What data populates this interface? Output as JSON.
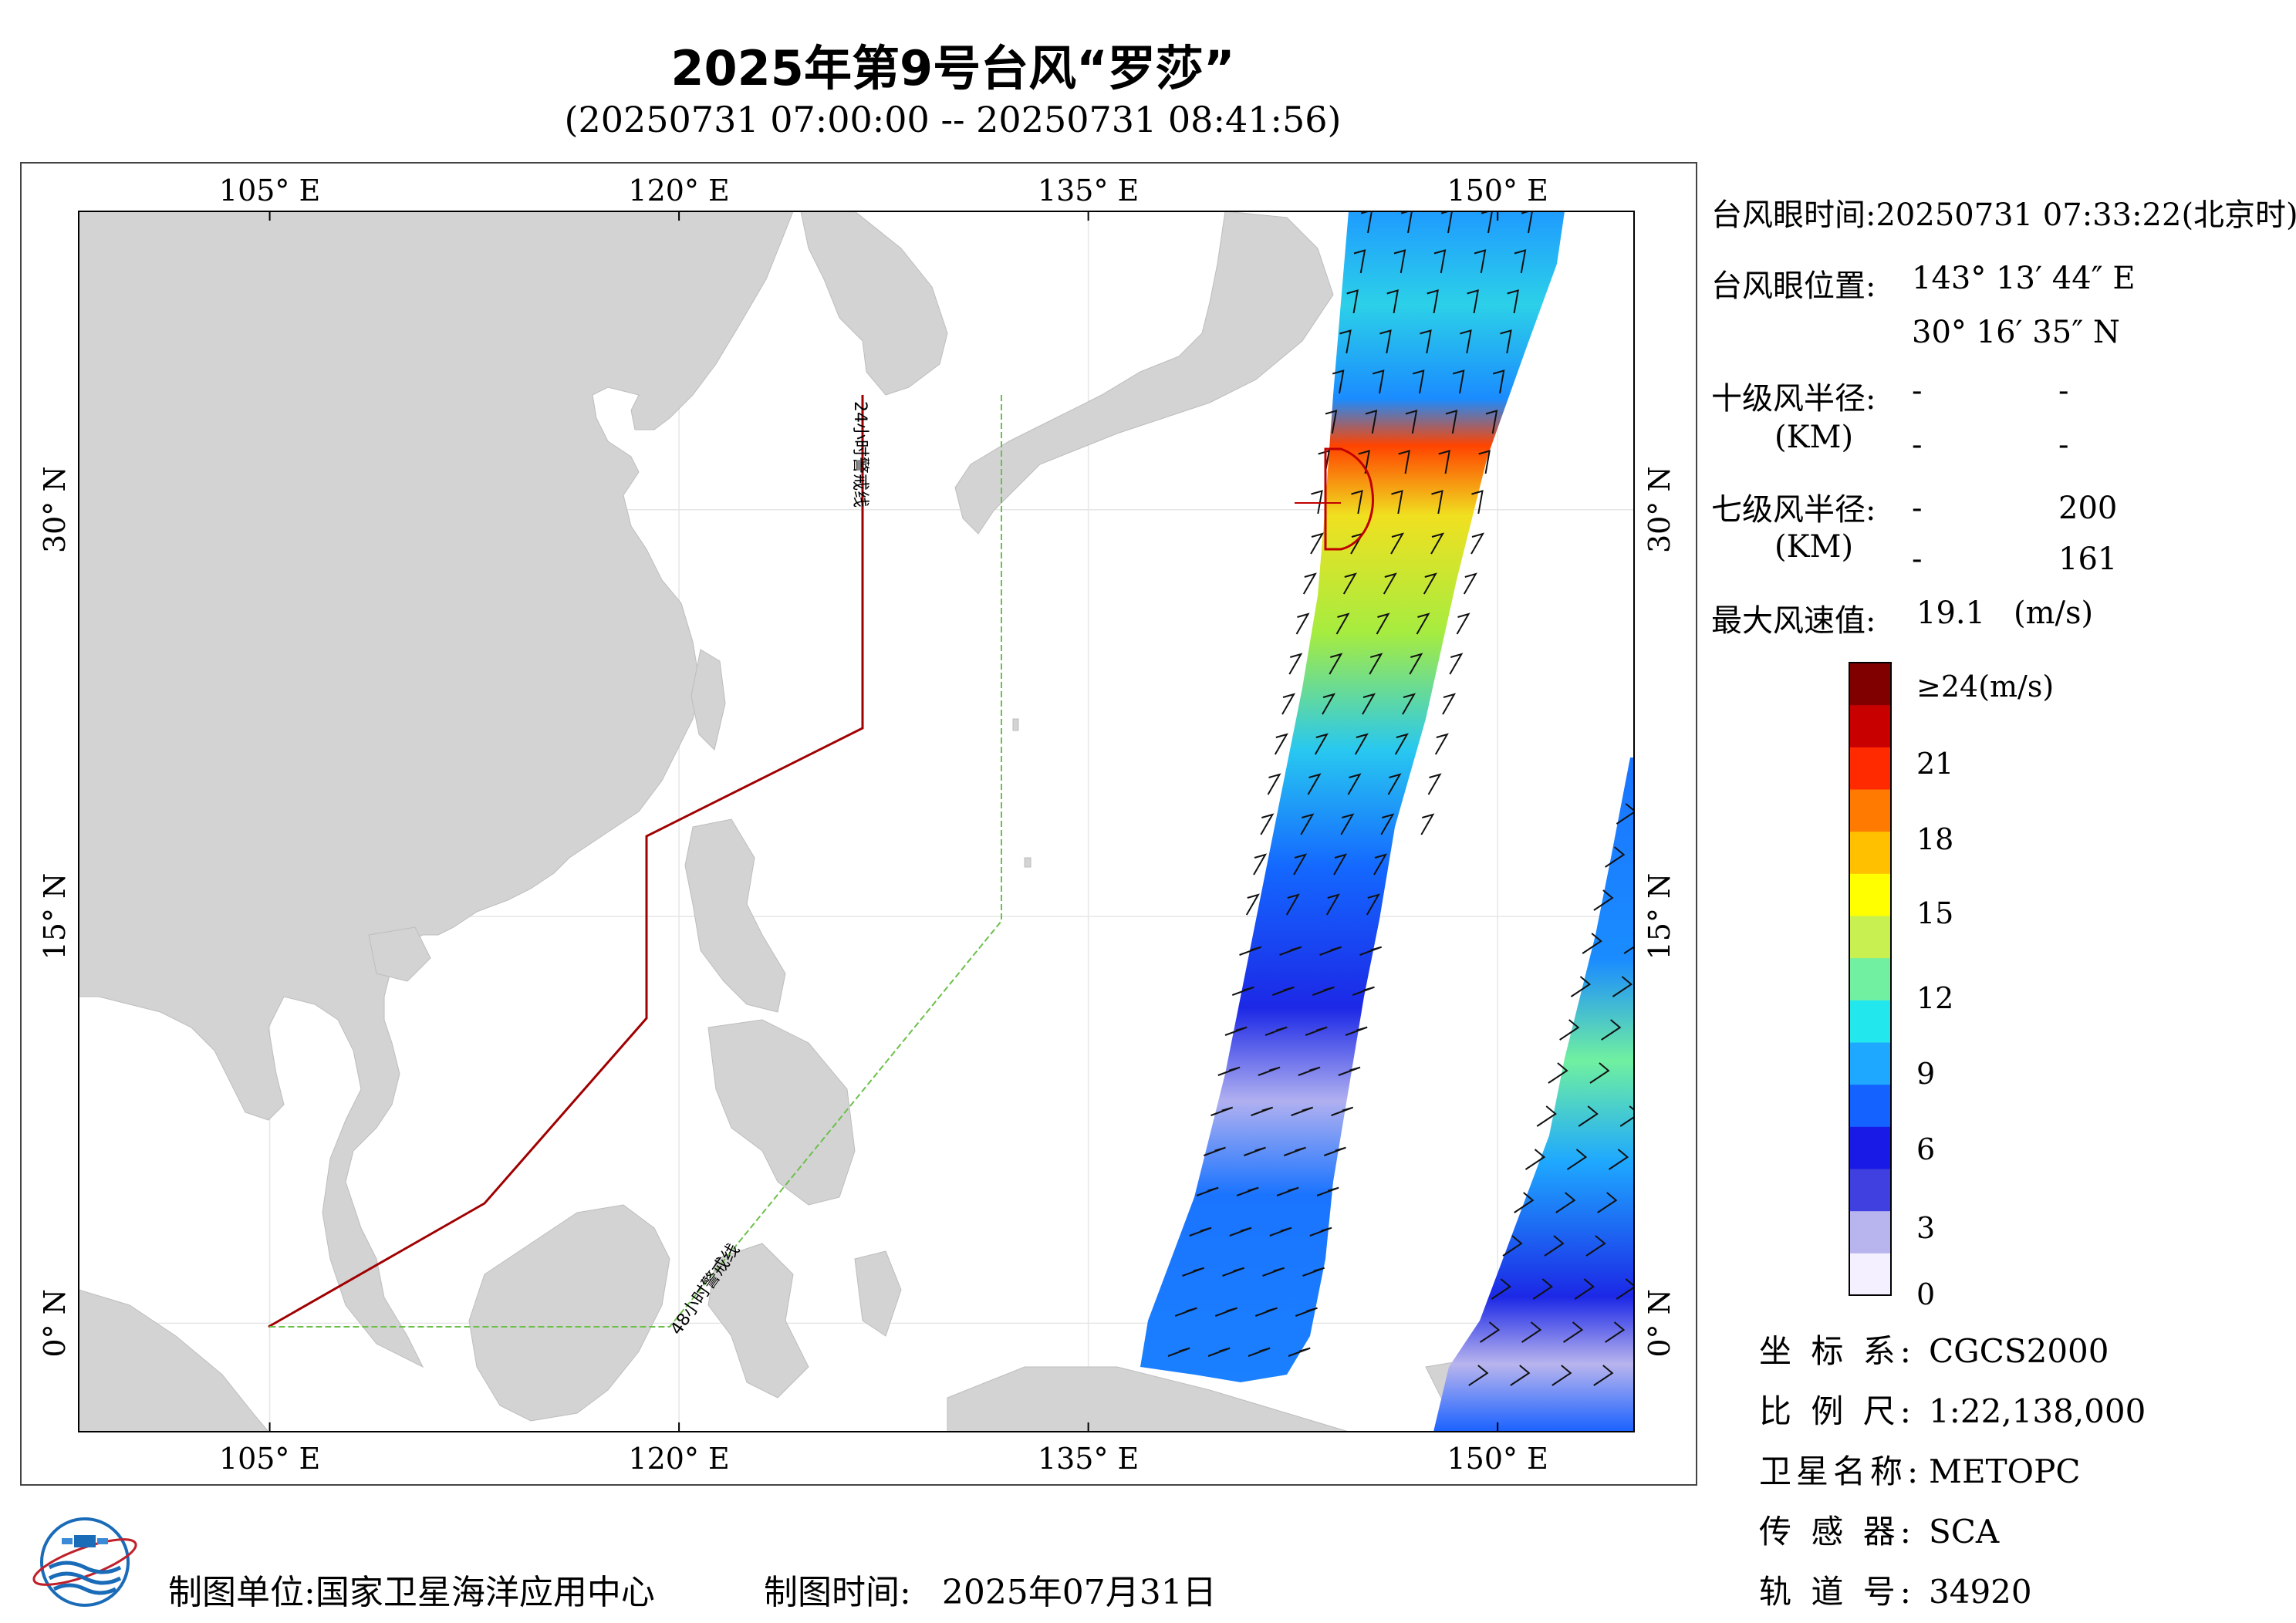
{
  "title": "2025年第9号台风“罗莎”",
  "subtitle": "(20250731 07:00:00 -- 20250731 08:41:56)",
  "map": {
    "lon_range": [
      98,
      155
    ],
    "lat_range": [
      -4,
      41
    ],
    "lon_ticks": [
      "105° E",
      "120° E",
      "135° E",
      "150° E"
    ],
    "lat_ticks": [
      "30° N",
      "15° N",
      "0° N"
    ],
    "warning_24h_label": "24小时警戒线",
    "warning_48h_label": "48小时警戒线",
    "colors": {
      "land": "#d3d3d3",
      "line_24h": "#a00000",
      "line_48h": "#6cc04a",
      "sea": "#ffffff"
    }
  },
  "info": {
    "eye_time_label": "台风眼时间:",
    "eye_time_value": "20250731 07:33:22(北京时)",
    "eye_pos_label": "台风眼位置:",
    "eye_lon": "143° 13′ 44″ E",
    "eye_lat": "30° 16′ 35″ N",
    "r10_label": "十级风半径:",
    "r10_unit": "(KM)",
    "r10_values": [
      "-",
      "-",
      "-",
      "-"
    ],
    "r7_label": "七级风半径:",
    "r7_unit": "(KM)",
    "r7_values": [
      "-",
      "200",
      "-",
      "161"
    ],
    "max_wind_label": "最大风速值:",
    "max_wind_value": "19.1",
    "max_wind_unit": "(m/s)"
  },
  "colorbar": {
    "labels": [
      "≥24(m/s)",
      "21",
      "18",
      "15",
      "12",
      "9",
      "6",
      "3",
      "0"
    ],
    "colors": [
      "#f4f0ff",
      "#b8b4ee",
      "#4040e0",
      "#1a1ae6",
      "#1462ff",
      "#1ea8ff",
      "#22e8ee",
      "#70f0a0",
      "#c8f050",
      "#ffff00",
      "#ffc000",
      "#ff7a00",
      "#ff2a00",
      "#c80000",
      "#800000"
    ]
  },
  "meta": {
    "crs_label": "坐 标 系:",
    "crs_value": "CGCS2000",
    "scale_label": "比 例 尺:",
    "scale_value": "1:22,138,000",
    "satellite_label": "卫星名称:",
    "satellite_value": "METOPC",
    "sensor_label": "传 感 器:",
    "sensor_value": "SCA",
    "orbit_label": "轨 道 号:",
    "orbit_value": "34920"
  },
  "footer": {
    "unit_label": "制图单位:",
    "unit_value": "国家卫星海洋应用中心",
    "time_label": "制图时间:",
    "time_value": "2025年07月31日"
  }
}
